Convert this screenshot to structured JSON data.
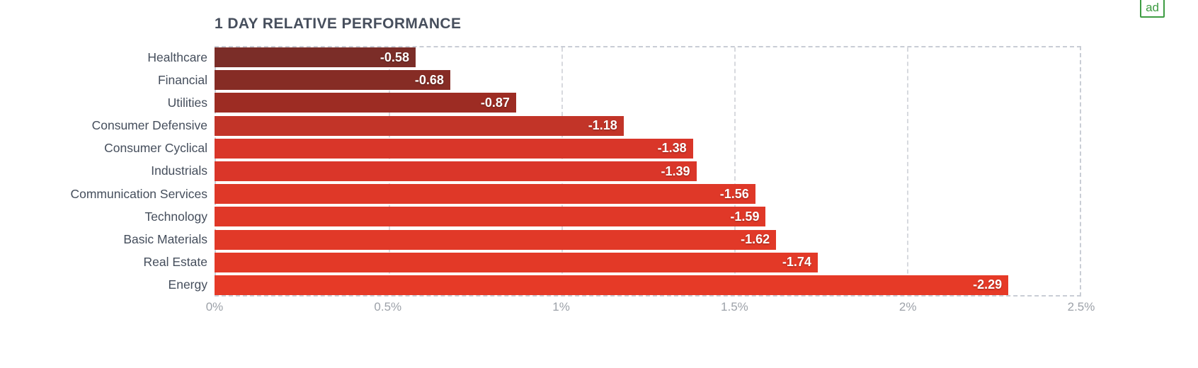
{
  "chart_data": {
    "type": "bar",
    "orientation": "horizontal",
    "title": "1 DAY RELATIVE PERFORMANCE",
    "categories": [
      "Healthcare",
      "Financial",
      "Utilities",
      "Consumer Defensive",
      "Consumer Cyclical",
      "Industrials",
      "Communication Services",
      "Technology",
      "Basic Materials",
      "Real Estate",
      "Energy"
    ],
    "values": [
      -0.58,
      -0.68,
      -0.87,
      -1.18,
      -1.38,
      -1.39,
      -1.56,
      -1.59,
      -1.62,
      -1.74,
      -2.29
    ],
    "value_labels": [
      "-0.58",
      "-0.68",
      "-0.87",
      "-1.18",
      "-1.38",
      "-1.39",
      "-1.56",
      "-1.59",
      "-1.62",
      "-1.74",
      "-2.29"
    ],
    "bar_colors": [
      "#7b2d28",
      "#862c25",
      "#9d2c23",
      "#c23428",
      "#d93629",
      "#da3629",
      "#df3828",
      "#e03828",
      "#e13928",
      "#e33927",
      "#e63a27"
    ],
    "xlabel": "",
    "ylabel": "",
    "x_axis": {
      "min": 0,
      "max": 2.5,
      "tick_labels": [
        "0%",
        "0.5%",
        "1%",
        "1.5%",
        "2%",
        "2.5%"
      ],
      "tick_values": [
        0,
        0.5,
        1,
        1.5,
        2,
        2.5
      ]
    },
    "grid": true,
    "legend": false,
    "note": "bar length encodes absolute value of negative performance"
  },
  "ad_badge": {
    "label": "ad",
    "color": "#3d9c42"
  },
  "style_colors": {
    "title_text": "#474f5d",
    "category_text": "#454e5c",
    "axis_tick_text": "#9da2a9",
    "border_dash": "#c9cdd5",
    "value_text": "#ffffff"
  }
}
